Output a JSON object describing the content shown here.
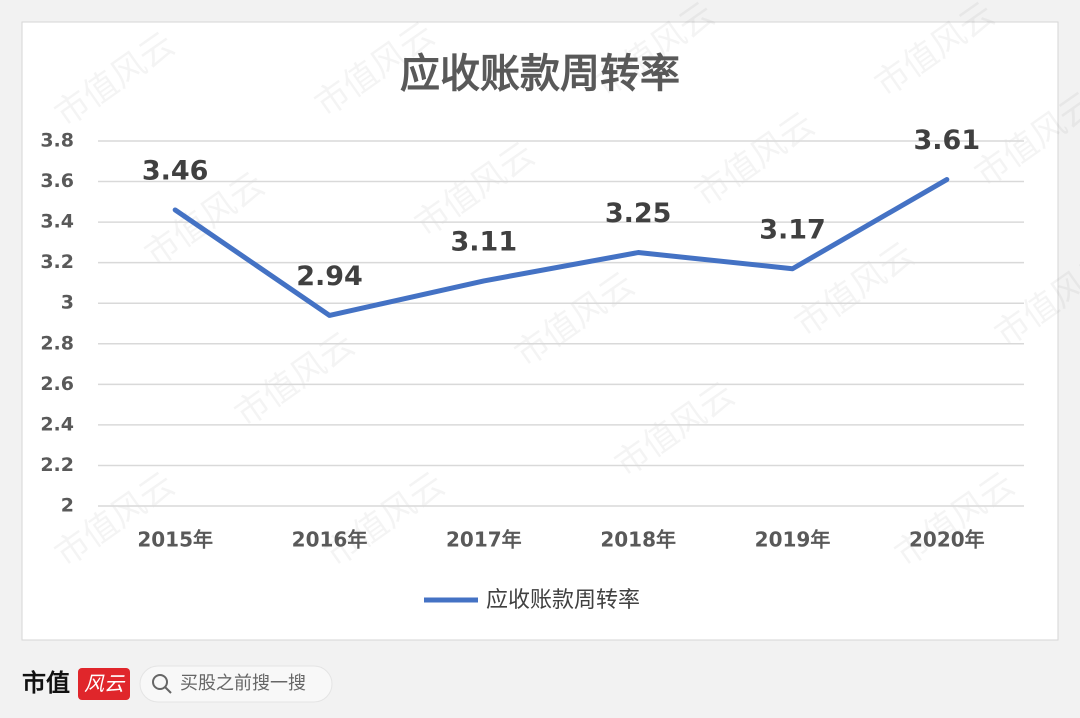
{
  "chart_data": {
    "type": "line",
    "title": "应收账款周转率",
    "categories": [
      "2015年",
      "2016年",
      "2017年",
      "2018年",
      "2019年",
      "2020年"
    ],
    "series": [
      {
        "name": "应收账款周转率",
        "color": "#4472c4",
        "values": [
          3.46,
          2.94,
          3.11,
          3.25,
          3.17,
          3.61
        ]
      }
    ],
    "ylim": [
      2,
      3.8
    ],
    "yticks": [
      2,
      2.2,
      2.4,
      2.6,
      2.8,
      3,
      3.2,
      3.4,
      3.6,
      3.8
    ],
    "grid": true,
    "legend": "bottom",
    "data_labels": true
  },
  "watermark": "市值风云",
  "footer": {
    "brand": "市值",
    "logo": "风云",
    "search": "买股之前搜一搜"
  }
}
